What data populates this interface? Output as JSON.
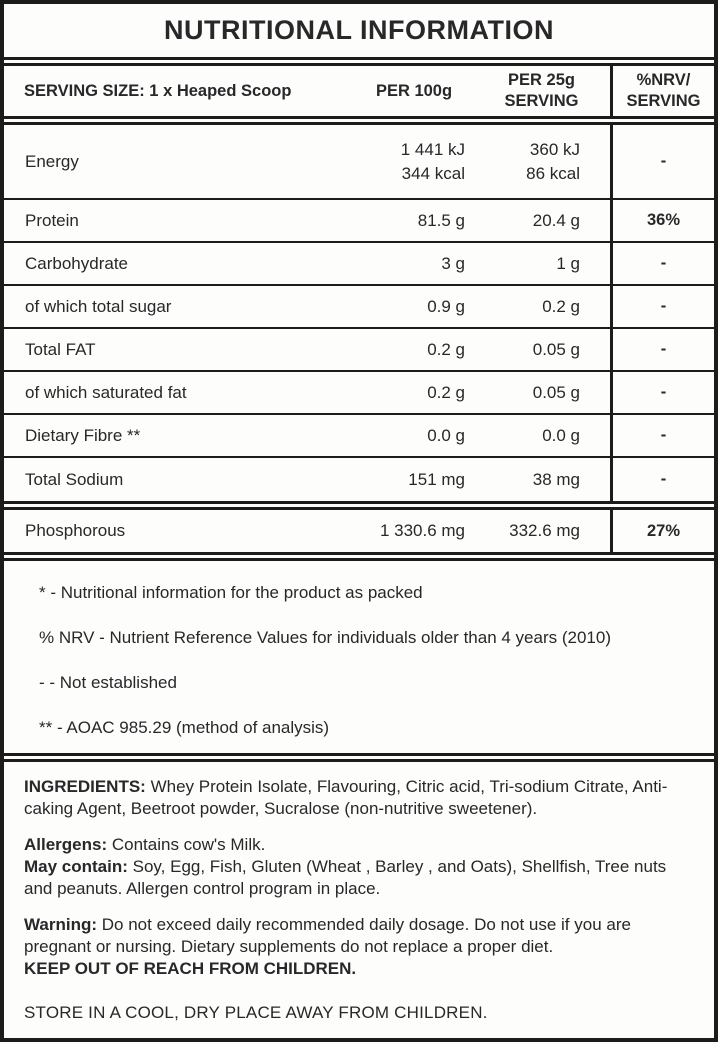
{
  "title": "NUTRITIONAL INFORMATION",
  "table": {
    "header": {
      "serving_size": "SERVING SIZE: 1 x Heaped Scoop",
      "col_per100": "PER 100g",
      "col_per25_line1": "PER 25g",
      "col_per25_line2": "SERVING",
      "col_nrv_line1": "%NRV/",
      "col_nrv_line2": "SERVING"
    },
    "rows": [
      {
        "label": "Energy",
        "per100": "1 441 kJ",
        "per100_2": "344 kcal",
        "per25": "360 kJ",
        "per25_2": "86 kcal",
        "nrv": "-"
      },
      {
        "label": "Protein",
        "per100": "81.5 g",
        "per25": "20.4 g",
        "nrv": "36%"
      },
      {
        "label": "Carbohydrate",
        "per100": "3 g",
        "per25": "1 g",
        "nrv": "-"
      },
      {
        "label": "of which total sugar",
        "per100": "0.9 g",
        "per25": "0.2 g",
        "nrv": "-"
      },
      {
        "label": "Total FAT",
        "per100": "0.2 g",
        "per25": "0.05 g",
        "nrv": "-"
      },
      {
        "label": "of which saturated fat",
        "per100": "0.2 g",
        "per25": "0.05 g",
        "nrv": "-"
      },
      {
        "label": "Dietary Fibre **",
        "per100": "0.0 g",
        "per25": "0.0 g",
        "nrv": "-"
      },
      {
        "label": "Total Sodium",
        "per100": "151 mg",
        "per25": "38 mg",
        "nrv": "-"
      },
      {
        "label": "Phosphorous",
        "per100": "1 330.6 mg",
        "per25": "332.6 mg",
        "nrv": "27%"
      }
    ]
  },
  "footnotes": [
    "* - Nutritional information for the product as packed",
    "% NRV - Nutrient Reference Values for individuals older than 4 years (2010)",
    "- - Not established",
    "** - AOAC 985.29 (method of analysis)"
  ],
  "info": {
    "ingredients_label": "INGREDIENTS:",
    "ingredients_text": "  Whey Protein Isolate, Flavouring, Citric acid, Tri-sodium Citrate, Anti-caking Agent, Beetroot powder, Sucralose (non-nutritive sweetener).",
    "allergens_label": "Allergens:",
    "allergens_text": " Contains cow's Milk.",
    "may_contain_label": "May contain:",
    "may_contain_text": " Soy, Egg, Fish, Gluten (Wheat , Barley , and Oats), Shellfish, Tree nuts and peanuts. Allergen control program in place.",
    "warning_label": "Warning:",
    "warning_text": " Do not exceed daily recommended daily dosage. Do not use if you are pregnant or nursing. Dietary supplements do not replace a proper diet.",
    "keep_out": "KEEP OUT OF REACH FROM CHILDREN.",
    "store": "STORE IN A COOL, DRY PLACE AWAY FROM CHILDREN."
  },
  "colors": {
    "border": "#1d1c1a",
    "text": "#29272a",
    "background": "#fdfdfb"
  }
}
